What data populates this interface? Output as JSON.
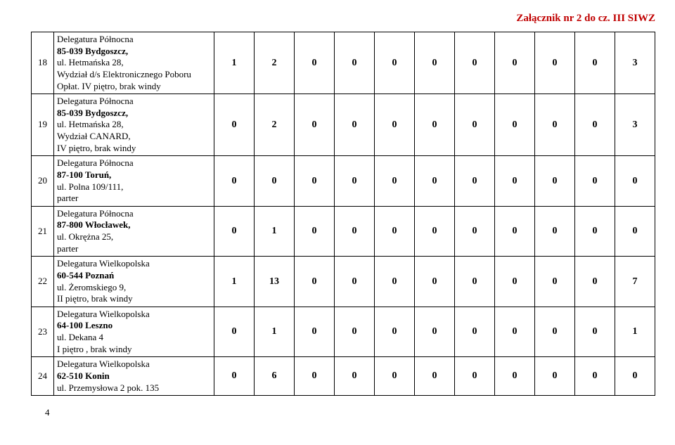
{
  "header": {
    "text": "Załącznik nr 2 do cz. III SIWZ",
    "color": "#c00000"
  },
  "pageNumber": "4",
  "numCols": 11,
  "rows": [
    {
      "num": "18",
      "desc": [
        "Delegatura Północna",
        {
          "bold": true,
          "text": "85-039 Bydgoszcz,"
        },
        "ul. Hetmańska 28,",
        "Wydział d/s Elektronicznego Poboru Opłat. IV piętro, brak windy"
      ],
      "values": [
        "1",
        "2",
        "0",
        "0",
        "0",
        "0",
        "0",
        "0",
        "0",
        "0",
        "3"
      ]
    },
    {
      "num": "19",
      "desc": [
        "Delegatura Północna",
        {
          "bold": true,
          "text": "85-039 Bydgoszcz,"
        },
        "ul. Hetmańska 28,",
        "Wydział CANARD,",
        "IV piętro, brak windy"
      ],
      "values": [
        "0",
        "2",
        "0",
        "0",
        "0",
        "0",
        "0",
        "0",
        "0",
        "0",
        "3"
      ]
    },
    {
      "num": "20",
      "desc": [
        "Delegatura Północna",
        {
          "bold": true,
          "text": "87-100 Toruń,"
        },
        "ul. Polna 109/111,",
        "parter"
      ],
      "values": [
        "0",
        "0",
        "0",
        "0",
        "0",
        "0",
        "0",
        "0",
        "0",
        "0",
        "0"
      ]
    },
    {
      "num": "21",
      "desc": [
        "Delegatura Północna",
        {
          "bold": true,
          "text": "87-800 Włocławek,"
        },
        "ul. Okrężna 25,",
        "parter"
      ],
      "values": [
        "0",
        "1",
        "0",
        "0",
        "0",
        "0",
        "0",
        "0",
        "0",
        "0",
        "0"
      ]
    },
    {
      "num": "22",
      "desc": [
        "Delegatura Wielkopolska",
        {
          "bold": true,
          "text": "60-544 Poznań"
        },
        "ul. Żeromskiego 9,",
        "II piętro, brak windy"
      ],
      "values": [
        "1",
        "13",
        "0",
        "0",
        "0",
        "0",
        "0",
        "0",
        "0",
        "0",
        "7"
      ]
    },
    {
      "num": "23",
      "desc": [
        "Delegatura Wielkopolska",
        {
          "bold": true,
          "text": "64-100 Leszno"
        },
        "ul. Dekana 4",
        "I piętro , brak windy"
      ],
      "values": [
        "0",
        "1",
        "0",
        "0",
        "0",
        "0",
        "0",
        "0",
        "0",
        "0",
        "1"
      ]
    },
    {
      "num": "24",
      "desc": [
        "Delegatura Wielkopolska",
        {
          "bold": true,
          "text": " 62-510 Konin"
        },
        "ul. Przemysłowa 2 pok. 135"
      ],
      "values": [
        "0",
        "6",
        "0",
        "0",
        "0",
        "0",
        "0",
        "0",
        "0",
        "0",
        "0"
      ]
    }
  ]
}
